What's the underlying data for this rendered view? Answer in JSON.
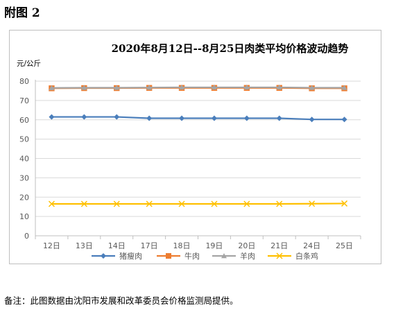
{
  "figure_label": "附图 2",
  "footnote": "备注：此图数据由沈阳市发展和改革委员会价格监测局提供。",
  "chart_data": {
    "type": "line",
    "title": "2020年8月12日--8月25日肉类平均价格波动趋势",
    "ylabel": "元/公斤",
    "xlabel": "",
    "ylim": [
      0,
      80
    ],
    "yticks": [
      0,
      10,
      20,
      30,
      40,
      50,
      60,
      70,
      80
    ],
    "grid": true,
    "legend_position": "bottom",
    "categories": [
      "12日",
      "13日",
      "14日",
      "17日",
      "18日",
      "19日",
      "20日",
      "21日",
      "24日",
      "25日"
    ],
    "series": [
      {
        "name": "猪瘦肉",
        "color": "#4a7ebb",
        "marker": "diamond",
        "values": [
          61.5,
          61.5,
          61.5,
          60.8,
          60.8,
          60.8,
          60.8,
          60.8,
          60.2,
          60.2
        ]
      },
      {
        "name": "牛肉",
        "color": "#ed7d31",
        "marker": "square",
        "values": [
          76.3,
          76.4,
          76.4,
          76.5,
          76.5,
          76.5,
          76.5,
          76.5,
          76.3,
          76.3
        ]
      },
      {
        "name": "羊肉",
        "color": "#a5a5a5",
        "marker": "triangle",
        "values": [
          76.5,
          76.6,
          76.6,
          76.7,
          76.8,
          76.8,
          76.8,
          76.8,
          76.6,
          76.6
        ]
      },
      {
        "name": "白条鸡",
        "color": "#ffc000",
        "marker": "x",
        "values": [
          16.5,
          16.5,
          16.5,
          16.5,
          16.5,
          16.5,
          16.5,
          16.5,
          16.6,
          16.7
        ]
      }
    ]
  }
}
